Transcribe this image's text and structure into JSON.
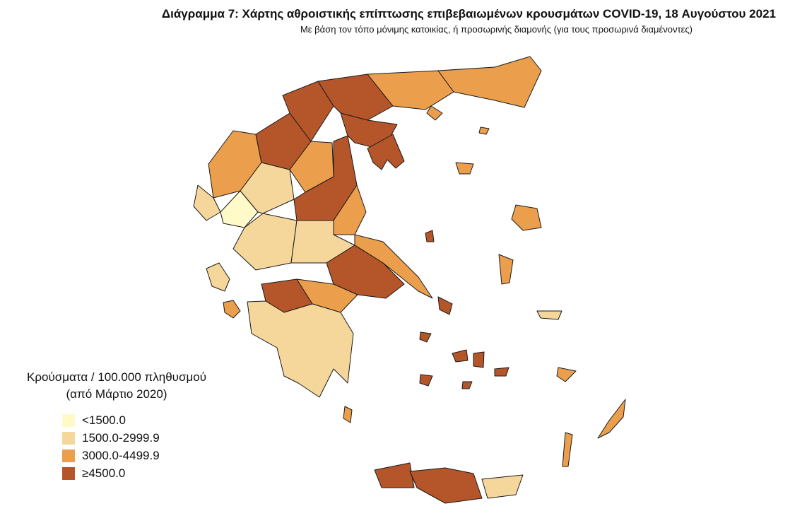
{
  "header": {
    "title": "Διάγραμμα 7: Χάρτης αθροιστικής επίπτωσης επιβεβαιωμένων κρουσμάτων COVID-19, 18 Αυγούστου 2021",
    "subtitle": "Με βάση τον τόπο μόνιμης κατοικίας, ή προσωρινής διαμονής (για τους προσωρινά διαμένοντες)"
  },
  "legend": {
    "title_line1": "Κρούσματα / 100.000 πληθυσμού",
    "title_line2": "(από Μάρτιο 2020)",
    "items": [
      {
        "label": "<1500.0",
        "color": "#fffac8"
      },
      {
        "label": "1500.0-2999.9",
        "color": "#f5d79c"
      },
      {
        "label": "3000.0-4499.9",
        "color": "#eb9f4c"
      },
      {
        "label": "≥4500.0",
        "color": "#b5552a"
      }
    ]
  }
}
